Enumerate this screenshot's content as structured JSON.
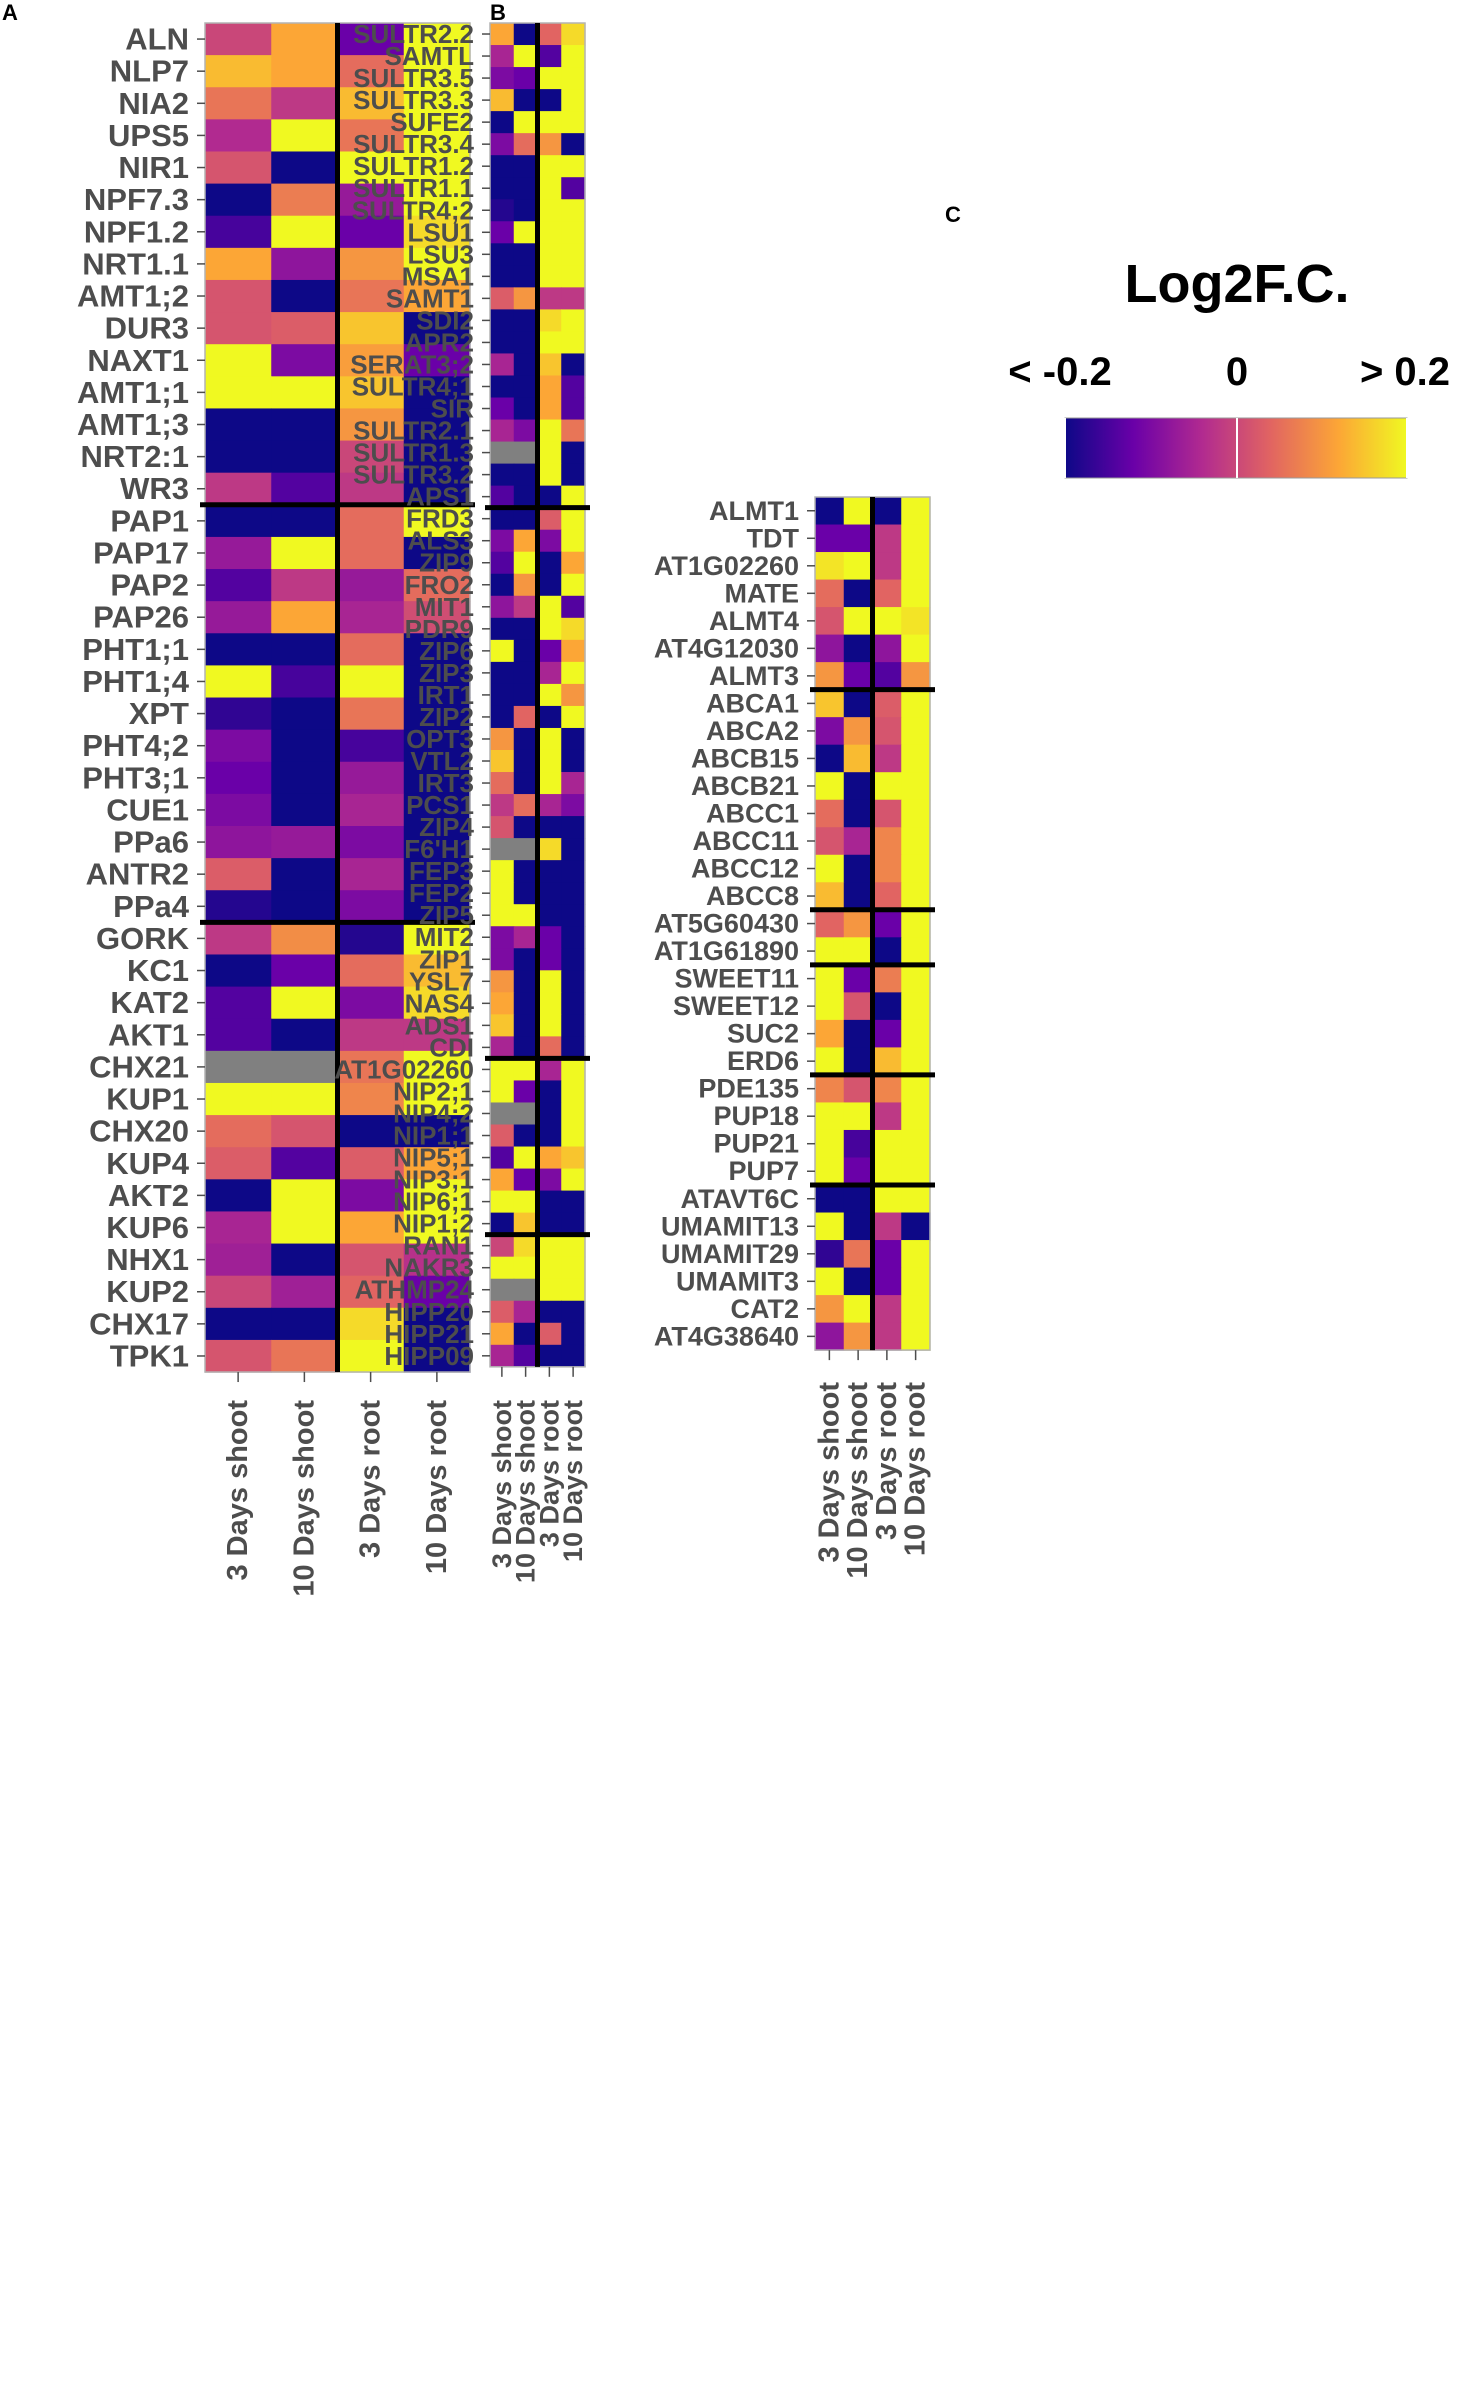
{
  "chart_data": [
    {
      "panel": "A",
      "type": "heatmap",
      "columns": [
        "3 Days shoot",
        "10 Days shoot",
        "3 Days root",
        "10 Days root"
      ],
      "rows": [
        "ALN",
        "NLP7",
        "NIA2",
        "UPS5",
        "NIR1",
        "NPF7.3",
        "NPF1.2",
        "NRT1.1",
        "AMT1;2",
        "DUR3",
        "NAXT1",
        "AMT1;1",
        "AMT1;3",
        "NRT2:1",
        "WR3",
        "PAP1",
        "PAP17",
        "PAP2",
        "PAP26",
        "PHT1;1",
        "PHT1;4",
        "XPT",
        "PHT4;2",
        "PHT3;1",
        "CUE1",
        "PPa6",
        "ANTR2",
        "PPa4",
        "GORK",
        "KC1",
        "KAT2",
        "AKT1",
        "CHX21",
        "KUP1",
        "CHX20",
        "KUP4",
        "AKT2",
        "KUP6",
        "NHX1",
        "KUP2",
        "CHX17",
        "TPK1"
      ],
      "group_breaks_after": [
        14,
        27
      ],
      "values": [
        [
          0.0,
          0.12,
          -0.12,
          0.2
        ],
        [
          0.14,
          0.12,
          0.05,
          0.2
        ],
        [
          0.06,
          -0.02,
          0.14,
          0.2
        ],
        [
          -0.04,
          0.2,
          0.06,
          0.2
        ],
        [
          0.02,
          -0.2,
          0.2,
          0.2
        ],
        [
          -0.2,
          0.07,
          -0.07,
          0.2
        ],
        [
          -0.15,
          0.2,
          -0.12,
          0.17
        ],
        [
          0.12,
          -0.08,
          0.1,
          0.2
        ],
        [
          0.02,
          -0.2,
          0.06,
          0.12
        ],
        [
          0.02,
          0.03,
          0.15,
          -0.2
        ],
        [
          0.2,
          -0.1,
          0.11,
          -0.12
        ],
        [
          0.2,
          0.2,
          0.15,
          -0.2
        ],
        [
          -0.2,
          -0.2,
          0.1,
          -0.2
        ],
        [
          -0.2,
          -0.2,
          0.0,
          -0.2
        ],
        [
          -0.02,
          -0.14,
          -0.02,
          -0.2
        ],
        [
          -0.2,
          -0.2,
          0.05,
          0.2
        ],
        [
          -0.07,
          0.2,
          0.05,
          -0.2
        ],
        [
          -0.14,
          -0.02,
          -0.07,
          0.05
        ],
        [
          -0.07,
          0.12,
          -0.05,
          0.01
        ],
        [
          -0.2,
          -0.2,
          0.05,
          -0.2
        ],
        [
          0.2,
          -0.15,
          0.2,
          -0.2
        ],
        [
          -0.17,
          -0.2,
          0.06,
          -0.2
        ],
        [
          -0.1,
          -0.2,
          -0.15,
          -0.2
        ],
        [
          -0.12,
          -0.2,
          -0.07,
          -0.2
        ],
        [
          -0.1,
          -0.2,
          -0.05,
          -0.2
        ],
        [
          -0.08,
          -0.07,
          -0.1,
          -0.2
        ],
        [
          0.03,
          -0.2,
          -0.05,
          -0.2
        ],
        [
          -0.18,
          -0.2,
          -0.1,
          -0.2
        ],
        [
          -0.02,
          0.09,
          -0.18,
          0.2
        ],
        [
          -0.2,
          -0.12,
          0.05,
          0.14
        ],
        [
          -0.14,
          0.2,
          -0.1,
          0.17
        ],
        [
          -0.14,
          -0.2,
          -0.02,
          -0.02
        ],
        [
          null,
          null,
          0.06,
          0.2
        ],
        [
          0.2,
          0.2,
          0.08,
          0.2
        ],
        [
          0.05,
          0.02,
          -0.2,
          -0.2
        ],
        [
          0.03,
          -0.14,
          0.03,
          0.12
        ],
        [
          -0.2,
          0.2,
          -0.1,
          0.2
        ],
        [
          -0.05,
          0.2,
          0.12,
          0.2
        ],
        [
          -0.06,
          -0.2,
          0.02,
          -0.03
        ],
        [
          0.0,
          -0.06,
          0.04,
          -0.12
        ],
        [
          -0.2,
          -0.2,
          0.17,
          -0.2
        ],
        [
          0.02,
          0.06,
          0.2,
          -0.2
        ]
      ]
    },
    {
      "panel": "B",
      "type": "heatmap",
      "columns": [
        "3 Days shoot",
        "10 Days shoot",
        "3 Days root",
        "10 Days root"
      ],
      "rows": [
        "SULTR2.2",
        "SAMTL",
        "SULTR3.5",
        "SULTR3.3",
        "SUFE2",
        "SULTR3.4",
        "SULTR1.2",
        "SULTR1.1",
        "SULTR4;2",
        "LSU1",
        "LSU3",
        "MSA1",
        "SAMT1",
        "SDI2",
        "APR2",
        "SERAT3;2",
        "SULTR4;1",
        "SIR",
        "SULTR2.1",
        "SULTR1.3",
        "SULTR3.2",
        "APS1",
        "FRD3",
        "ALS3",
        "ZIP9",
        "FRO2",
        "MIT1",
        "PDR9",
        "ZIP6",
        "ZIP3",
        "IRT1",
        "ZIP2",
        "OPT3",
        "VTL2",
        "IRT3",
        "PCS1",
        "ZIP4",
        "F6'H1",
        "FEP3",
        "FEP2",
        "ZIP5",
        "MIT2",
        "ZIP1",
        "YSL7",
        "NAS4",
        "ADS1",
        "CDI",
        "AT1G02260",
        "NIP2;1",
        "NIP4;2",
        "NIP1;1",
        "NIP5;1",
        "NIP3;1",
        "NIP6;1",
        "NIP1;2",
        "RAN1",
        "NAKR3",
        "ATHMP24",
        "HIPP20",
        "HIPP21",
        "HIPP09"
      ],
      "group_breaks_after": [
        21,
        46,
        54
      ],
      "values": [
        [
          0.12,
          -0.2,
          0.04,
          0.17
        ],
        [
          -0.05,
          0.2,
          -0.14,
          0.2
        ],
        [
          -0.1,
          -0.12,
          0.2,
          0.2
        ],
        [
          0.14,
          -0.2,
          -0.2,
          0.2
        ],
        [
          -0.2,
          0.2,
          0.2,
          0.2
        ],
        [
          -0.1,
          0.05,
          0.1,
          -0.2
        ],
        [
          -0.2,
          -0.2,
          0.2,
          0.2
        ],
        [
          -0.2,
          -0.2,
          0.2,
          -0.14
        ],
        [
          -0.18,
          -0.2,
          0.2,
          0.2
        ],
        [
          -0.12,
          0.2,
          0.2,
          0.2
        ],
        [
          -0.2,
          -0.2,
          0.2,
          0.2
        ],
        [
          -0.2,
          -0.2,
          0.2,
          0.2
        ],
        [
          0.03,
          0.1,
          -0.02,
          -0.02
        ],
        [
          -0.2,
          -0.2,
          0.17,
          0.2
        ],
        [
          -0.2,
          -0.2,
          0.2,
          0.2
        ],
        [
          -0.05,
          -0.2,
          0.15,
          -0.2
        ],
        [
          -0.2,
          -0.2,
          0.12,
          -0.14
        ],
        [
          -0.12,
          -0.2,
          0.12,
          -0.14
        ],
        [
          -0.05,
          -0.1,
          0.2,
          0.06
        ],
        [
          null,
          null,
          0.2,
          -0.2
        ],
        [
          -0.2,
          -0.2,
          0.2,
          -0.2
        ],
        [
          -0.14,
          -0.2,
          -0.2,
          0.2
        ],
        [
          -0.2,
          -0.2,
          0.03,
          0.2
        ],
        [
          -0.1,
          0.12,
          -0.1,
          0.2
        ],
        [
          -0.14,
          0.2,
          -0.2,
          0.12
        ],
        [
          -0.2,
          0.1,
          -0.2,
          0.2
        ],
        [
          -0.08,
          -0.02,
          0.2,
          -0.14
        ],
        [
          -0.2,
          -0.2,
          0.2,
          0.17
        ],
        [
          0.2,
          -0.2,
          -0.12,
          0.12
        ],
        [
          -0.2,
          -0.2,
          -0.05,
          0.2
        ],
        [
          -0.2,
          -0.2,
          0.2,
          0.1
        ],
        [
          -0.2,
          0.04,
          -0.2,
          0.2
        ],
        [
          0.1,
          -0.2,
          0.2,
          -0.2
        ],
        [
          0.15,
          -0.2,
          0.2,
          -0.2
        ],
        [
          0.05,
          -0.2,
          0.2,
          -0.05
        ],
        [
          -0.02,
          0.05,
          -0.05,
          -0.1
        ],
        [
          0.02,
          -0.2,
          -0.2,
          -0.2
        ],
        [
          null,
          null,
          0.17,
          -0.2
        ],
        [
          0.2,
          -0.2,
          -0.2,
          -0.2
        ],
        [
          0.2,
          -0.2,
          -0.2,
          -0.2
        ],
        [
          0.2,
          0.2,
          -0.2,
          -0.2
        ],
        [
          -0.1,
          -0.05,
          -0.12,
          -0.2
        ],
        [
          -0.1,
          -0.2,
          -0.12,
          -0.2
        ],
        [
          0.1,
          -0.2,
          0.2,
          -0.2
        ],
        [
          0.12,
          -0.2,
          0.2,
          -0.2
        ],
        [
          0.15,
          -0.2,
          0.2,
          -0.2
        ],
        [
          -0.05,
          -0.2,
          0.05,
          -0.2
        ],
        [
          0.2,
          0.2,
          -0.05,
          0.2
        ],
        [
          0.2,
          -0.12,
          -0.2,
          0.2
        ],
        [
          null,
          null,
          -0.2,
          0.2
        ],
        [
          0.03,
          -0.2,
          -0.2,
          0.2
        ],
        [
          -0.14,
          0.2,
          0.12,
          0.15
        ],
        [
          0.12,
          -0.12,
          -0.1,
          0.2
        ],
        [
          0.2,
          0.2,
          -0.2,
          -0.2
        ],
        [
          -0.2,
          0.15,
          -0.2,
          -0.2
        ],
        [
          0.0,
          0.17,
          0.2,
          0.2
        ],
        [
          0.2,
          0.2,
          0.2,
          0.2
        ],
        [
          null,
          null,
          0.2,
          0.2
        ],
        [
          0.03,
          -0.05,
          -0.2,
          -0.2
        ],
        [
          0.12,
          -0.2,
          0.03,
          -0.2
        ],
        [
          -0.05,
          -0.14,
          -0.2,
          -0.2
        ]
      ]
    },
    {
      "panel": "C",
      "type": "heatmap",
      "columns": [
        "3 Days shoot",
        "10 Days shoot",
        "3 Days root",
        "10 Days root"
      ],
      "rows": [
        "ALMT1",
        "TDT",
        "AT1G02260",
        "MATE",
        "ALMT4",
        "AT4G12030",
        "ALMT3",
        "ABCA1",
        "ABCA2",
        "ABCB15",
        "ABCB21",
        "ABCC1",
        "ABCC11",
        "ABCC12",
        "ABCC8",
        "AT5G60430",
        "AT1G61890",
        "SWEET11",
        "SWEET12",
        "SUC2",
        "ERD6",
        "PDE135",
        "PUP18",
        "PUP21",
        "PUP7",
        "ATAVT6C",
        "UMAMIT13",
        "UMAMIT29",
        "UMAMIT3",
        "CAT2",
        "AT4G38640"
      ],
      "group_breaks_after": [
        6,
        14,
        16,
        20,
        24
      ],
      "values": [
        [
          -0.2,
          0.2,
          -0.2,
          0.2
        ],
        [
          -0.12,
          -0.12,
          -0.02,
          0.2
        ],
        [
          0.18,
          0.2,
          -0.02,
          0.2
        ],
        [
          0.05,
          -0.2,
          0.04,
          0.2
        ],
        [
          0.02,
          0.2,
          0.2,
          0.18
        ],
        [
          -0.08,
          -0.2,
          -0.08,
          0.2
        ],
        [
          0.1,
          -0.12,
          -0.14,
          0.1
        ],
        [
          0.15,
          -0.2,
          0.03,
          0.2
        ],
        [
          -0.1,
          0.1,
          0.02,
          0.2
        ],
        [
          -0.2,
          0.14,
          -0.02,
          0.2
        ],
        [
          0.2,
          -0.2,
          0.2,
          0.2
        ],
        [
          0.05,
          -0.2,
          0.02,
          0.2
        ],
        [
          0.02,
          -0.05,
          0.08,
          0.2
        ],
        [
          0.2,
          -0.2,
          0.08,
          0.2
        ],
        [
          0.14,
          -0.2,
          0.04,
          0.2
        ],
        [
          0.04,
          0.1,
          -0.12,
          0.2
        ],
        [
          0.2,
          0.2,
          -0.2,
          0.2
        ],
        [
          0.2,
          -0.12,
          0.07,
          0.2
        ],
        [
          0.2,
          0.02,
          -0.2,
          0.2
        ],
        [
          0.12,
          -0.2,
          -0.12,
          0.2
        ],
        [
          0.2,
          -0.2,
          0.14,
          0.2
        ],
        [
          0.08,
          0.02,
          0.08,
          0.2
        ],
        [
          0.2,
          0.2,
          -0.02,
          0.2
        ],
        [
          0.2,
          -0.15,
          0.2,
          0.2
        ],
        [
          0.2,
          -0.12,
          0.2,
          0.2
        ],
        [
          -0.2,
          -0.2,
          0.2,
          0.2
        ],
        [
          0.2,
          -0.2,
          -0.02,
          -0.2
        ],
        [
          -0.17,
          0.06,
          -0.12,
          0.2
        ],
        [
          0.2,
          -0.2,
          -0.12,
          0.2
        ],
        [
          0.1,
          0.2,
          -0.02,
          0.2
        ],
        [
          -0.08,
          0.1,
          -0.02,
          0.2
        ]
      ]
    }
  ],
  "legend": {
    "title": "Log2F.C.",
    "low_label": "< -0.2",
    "mid_label": "0",
    "high_label": "> 0.2",
    "range": [
      -0.2,
      0.2
    ],
    "colors": [
      "#0d0887",
      "#6a00a8",
      "#b12a90",
      "#e16462",
      "#fca636",
      "#f0f921"
    ],
    "na_color": "#808080"
  }
}
